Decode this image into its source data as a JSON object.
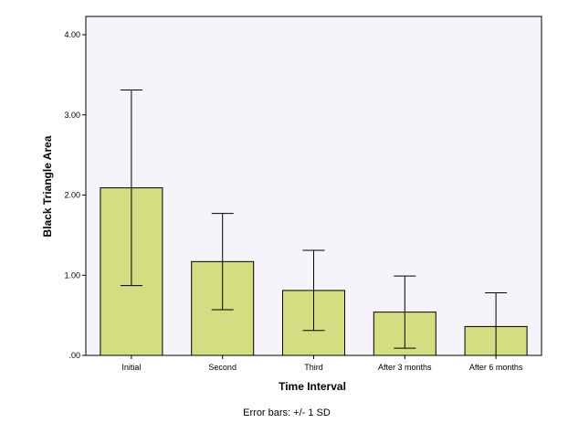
{
  "chart_data": {
    "type": "bar",
    "categories": [
      "Initial",
      "Second",
      "Third",
      "After 3 months",
      "After 6 months"
    ],
    "values": [
      2.09,
      1.17,
      0.81,
      0.54,
      0.36
    ],
    "error_sd": [
      1.22,
      0.6,
      0.5,
      0.45,
      0.42
    ],
    "error_bars_label": "Error bars: +/- 1 SD",
    "xlabel": "Time Interval",
    "ylabel": "Black Triangle Area",
    "ylim": [
      0,
      4.2
    ],
    "yticks": [
      0,
      1,
      2,
      3,
      4
    ],
    "ytick_labels": [
      ".00",
      "1.00",
      "2.00",
      "3.00",
      "4.00"
    ],
    "grid": false,
    "colors": {
      "bar_fill": "#d3de82",
      "bar_stroke": "#000000",
      "plot_background": "#f6f3fa",
      "error_bar": "#000000"
    }
  }
}
